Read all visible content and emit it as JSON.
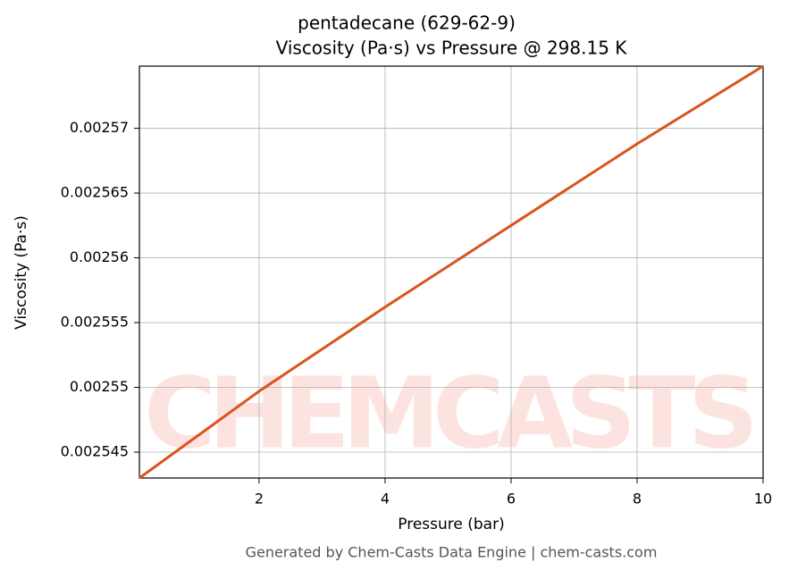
{
  "chart_data": {
    "type": "line",
    "title": "pentadecane (629-62-9)",
    "subtitle": "Viscosity (Pa·s) vs Pressure @ 298.15 K",
    "x_label": "Pressure (bar)",
    "y_label": "Viscosity (Pa·s)",
    "footer": "Generated by Chem-Casts Data Engine | chem-casts.com",
    "watermark": "CHEMCASTS",
    "x": [
      0.1,
      2,
      4,
      6,
      8,
      10
    ],
    "series": [
      {
        "name": "Viscosity",
        "color": "#d9541e",
        "values": [
          0.002543,
          0.0025497,
          0.0025562,
          0.0025625,
          0.0025688,
          0.0025748
        ]
      }
    ],
    "xlim": [
      0.1,
      10
    ],
    "xticks": [
      2,
      4,
      6,
      8,
      10
    ],
    "ylim": [
      0.002543,
      0.0025748
    ],
    "yticks": [
      0.002545,
      0.00255,
      0.002555,
      0.00256,
      0.002565,
      0.00257
    ],
    "grid": true
  }
}
